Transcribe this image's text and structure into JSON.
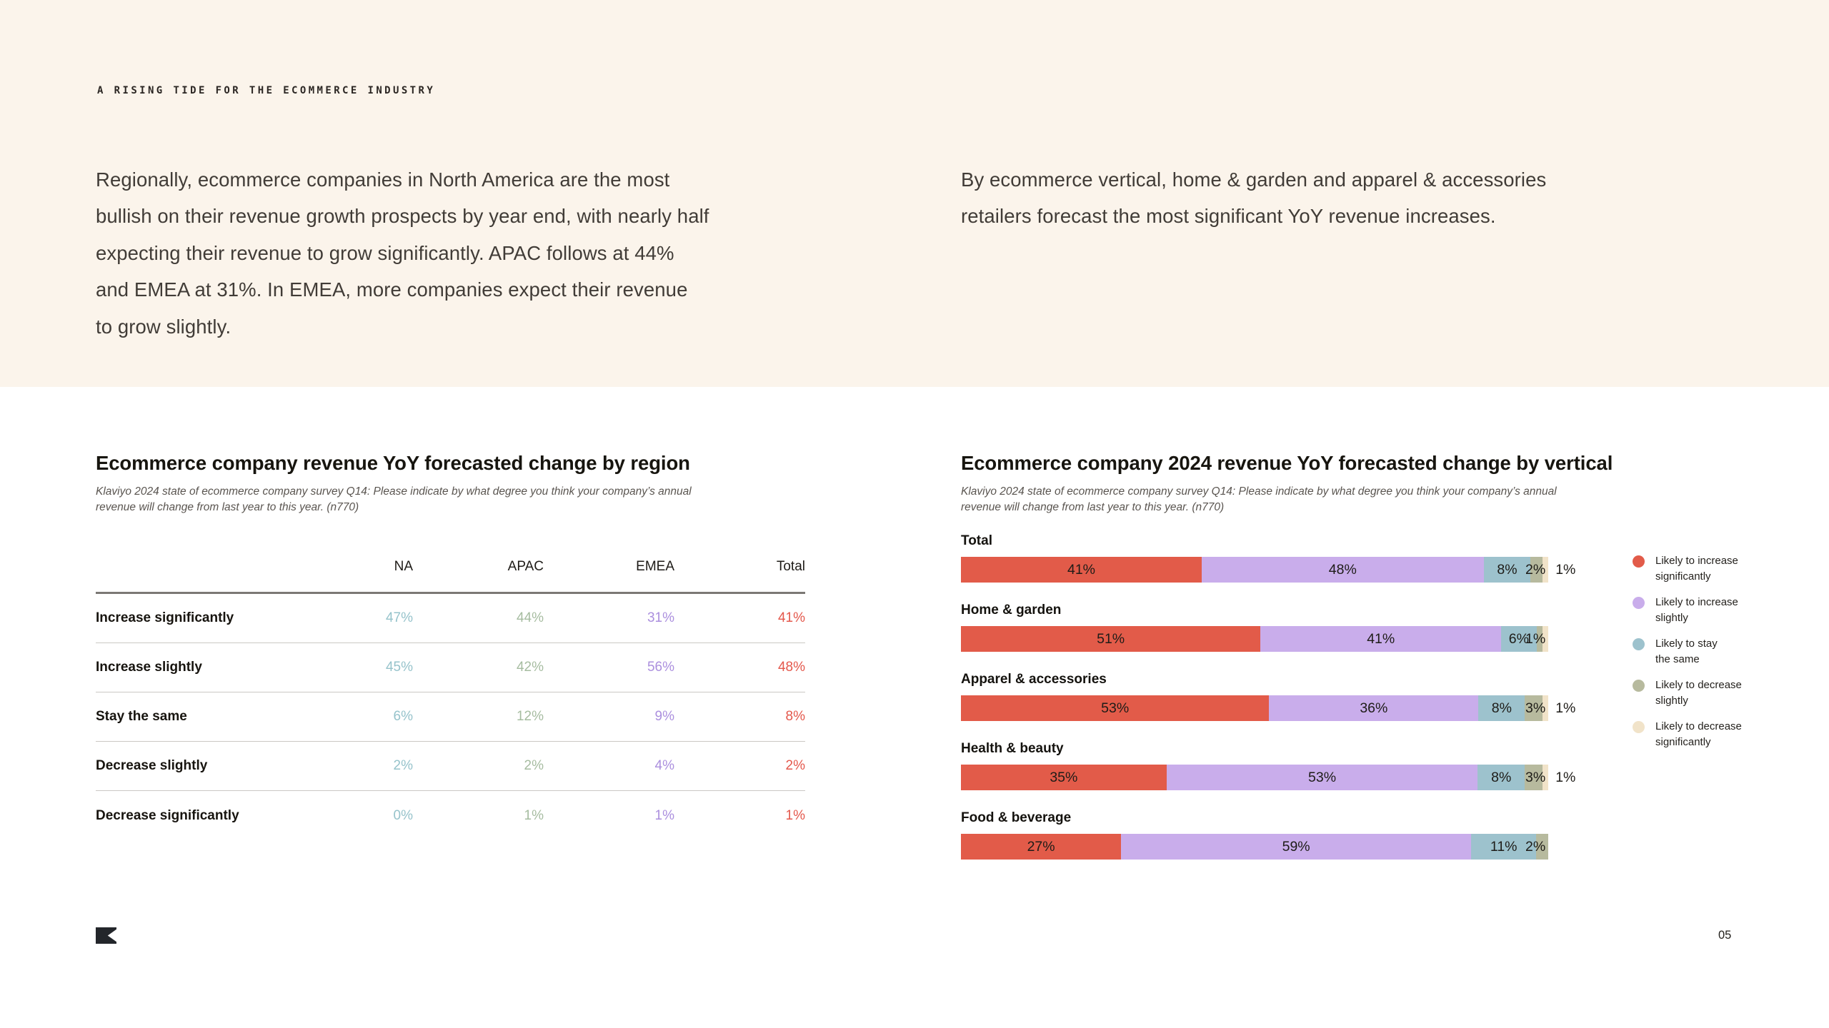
{
  "page": {
    "eyebrow": "A RISING TIDE FOR THE ECOMMERCE INDUSTRY",
    "page_number": "05",
    "top_background": "#FBF4EB",
    "bottom_background": "#FFFFFF"
  },
  "intro": {
    "left_paragraph": "Regionally, ecommerce companies in North America are the most\nbullish on their revenue growth prospects by year end, with nearly half\nexpecting their revenue to grow significantly. APAC follows at 44%\nand EMEA at 31%. In EMEA, more companies expect their revenue\nto grow slightly.",
    "right_paragraph": "By ecommerce vertical, home & garden and apparel & accessories\nretailers forecast the most significant YoY revenue increases."
  },
  "region_table": {
    "title": "Ecommerce company revenue YoY forecasted change by region",
    "subtitle": "Klaviyo 2024 state of ecommerce company survey Q14: Please indicate by what degree you think your company’s annual\nrevenue will change from last year to this year. (n770)",
    "column_colors": [
      "#96C3CB",
      "#A6BCA0",
      "#AB8FDE",
      "#E4584C"
    ]
  },
  "vertical_chart": {
    "title": "Ecommerce company 2024 revenue YoY forecasted change by vertical",
    "subtitle": "Klaviyo 2024 state of ecommerce company survey Q14: Please indicate by what degree you think your company’s annual\nrevenue will change from last year to this year. (n770)"
  },
  "chart_data": [
    {
      "type": "table",
      "title": "Ecommerce company revenue YoY forecasted change by region",
      "unit": "%",
      "columns": [
        "NA",
        "APAC",
        "EMEA",
        "Total"
      ],
      "rows": [
        {
          "label": "Increase significantly",
          "values": [
            47,
            44,
            31,
            41
          ]
        },
        {
          "label": "Increase slightly",
          "values": [
            45,
            42,
            56,
            48
          ]
        },
        {
          "label": "Stay the same",
          "values": [
            6,
            12,
            9,
            8
          ]
        },
        {
          "label": "Decrease slightly",
          "values": [
            2,
            2,
            4,
            2
          ]
        },
        {
          "label": "Decrease significantly",
          "values": [
            0,
            1,
            1,
            1
          ]
        }
      ]
    },
    {
      "type": "bar",
      "stacked": true,
      "orientation": "horizontal",
      "unit": "%",
      "xlim": [
        0,
        100
      ],
      "legend_position": "right",
      "title": "Ecommerce company 2024 revenue YoY forecasted change by vertical",
      "categories": [
        "Total",
        "Home & garden",
        "Apparel & accessories",
        "Health & beauty",
        "Food & beverage"
      ],
      "series": [
        {
          "name": "Likely to increase\nsignificantly",
          "color": "#E25B49",
          "values": [
            41,
            51,
            53,
            35,
            27
          ],
          "labels": [
            "41%",
            "51%",
            "53%",
            "35%",
            "27%"
          ]
        },
        {
          "name": "Likely to increase\nslightly",
          "color": "#C9ADEB",
          "values": [
            48,
            41,
            36,
            53,
            59
          ],
          "labels": [
            "48%",
            "41%",
            "36%",
            "53%",
            "59%"
          ]
        },
        {
          "name": "Likely to stay\nthe same",
          "color": "#9DC2CD",
          "values": [
            8,
            6,
            8,
            8,
            11
          ],
          "labels": [
            "8%",
            "6%",
            "8%",
            "8%",
            "11%"
          ]
        },
        {
          "name": "Likely to decrease\nslightly",
          "color": "#B7BA9E",
          "values": [
            2,
            1,
            3,
            3,
            2
          ],
          "labels": [
            "2%",
            "1%",
            "3%",
            "3%",
            "2%"
          ]
        },
        {
          "name": "Likely to decrease\nsignificantly",
          "color": "#F1E3C9",
          "values": [
            1,
            1,
            1,
            1,
            0
          ],
          "labels": [
            "1%",
            "",
            "1%",
            "1%",
            ""
          ]
        }
      ]
    }
  ]
}
